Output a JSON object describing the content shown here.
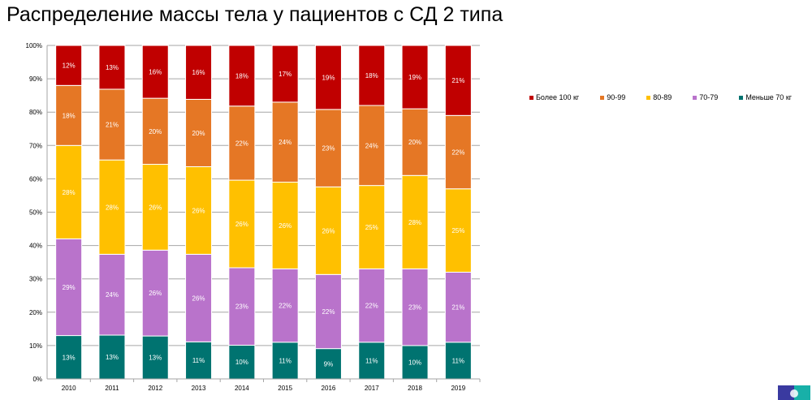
{
  "chart_data": {
    "type": "bar",
    "stacked": true,
    "title": "Распределение  массы тела у пациентов  с СД 2 типа",
    "categories": [
      "2010",
      "2011",
      "2012",
      "2013",
      "2014",
      "2015",
      "2016",
      "2017",
      "2018",
      "2019"
    ],
    "series": [
      {
        "name": "Меньше 70 кг",
        "color": "#007370",
        "values": [
          13,
          13,
          13,
          11,
          10,
          11,
          9,
          11,
          10,
          11
        ]
      },
      {
        "name": "70-79",
        "color": "#b973cb",
        "values": [
          29,
          24,
          26,
          26,
          23,
          22,
          22,
          22,
          23,
          21
        ]
      },
      {
        "name": "80-89",
        "color": "#ffc000",
        "values": [
          28,
          28,
          26,
          26,
          26,
          26,
          26,
          25,
          28,
          25
        ]
      },
      {
        "name": "90-99",
        "color": "#e57725",
        "values": [
          18,
          21,
          20,
          20,
          22,
          24,
          23,
          24,
          20,
          22
        ]
      },
      {
        "name": "Более 100 кг",
        "color": "#c00000",
        "values": [
          12,
          13,
          16,
          16,
          18,
          17,
          19,
          18,
          19,
          21
        ]
      }
    ],
    "yticks": [
      "0%",
      "10%",
      "20%",
      "30%",
      "40%",
      "50%",
      "60%",
      "70%",
      "80%",
      "90%",
      "100%"
    ],
    "ylim": [
      0,
      100
    ],
    "grid": true,
    "legend": "right"
  }
}
